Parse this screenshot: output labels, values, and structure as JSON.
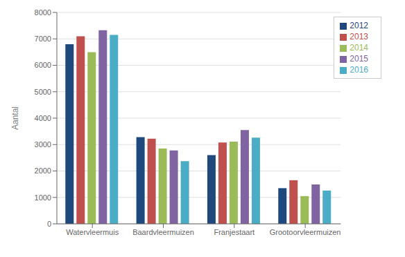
{
  "chart_data": {
    "type": "bar",
    "categories": [
      "Watervleermuis",
      "Baardvleermuizen",
      "Franjestaart",
      "Grootoorvleermuizen"
    ],
    "series": [
      {
        "name": "2012",
        "color": "#1F497D",
        "values": [
          6800,
          3280,
          2600,
          1350
        ]
      },
      {
        "name": "2013",
        "color": "#C0504D",
        "values": [
          7100,
          3220,
          3080,
          1650
        ]
      },
      {
        "name": "2014",
        "color": "#9BBB59",
        "values": [
          6500,
          2850,
          3110,
          1050
        ]
      },
      {
        "name": "2015",
        "color": "#8064A2",
        "values": [
          7330,
          2780,
          3550,
          1490
        ]
      },
      {
        "name": "2016",
        "color": "#4BACC6",
        "values": [
          7150,
          2370,
          3260,
          1260
        ]
      }
    ],
    "ylabel": "Aantal",
    "ylim": [
      0,
      8000
    ],
    "yticks": [
      0,
      1000,
      2000,
      3000,
      4000,
      5000,
      6000,
      7000,
      8000
    ],
    "grid": true,
    "legend": "upper right"
  }
}
